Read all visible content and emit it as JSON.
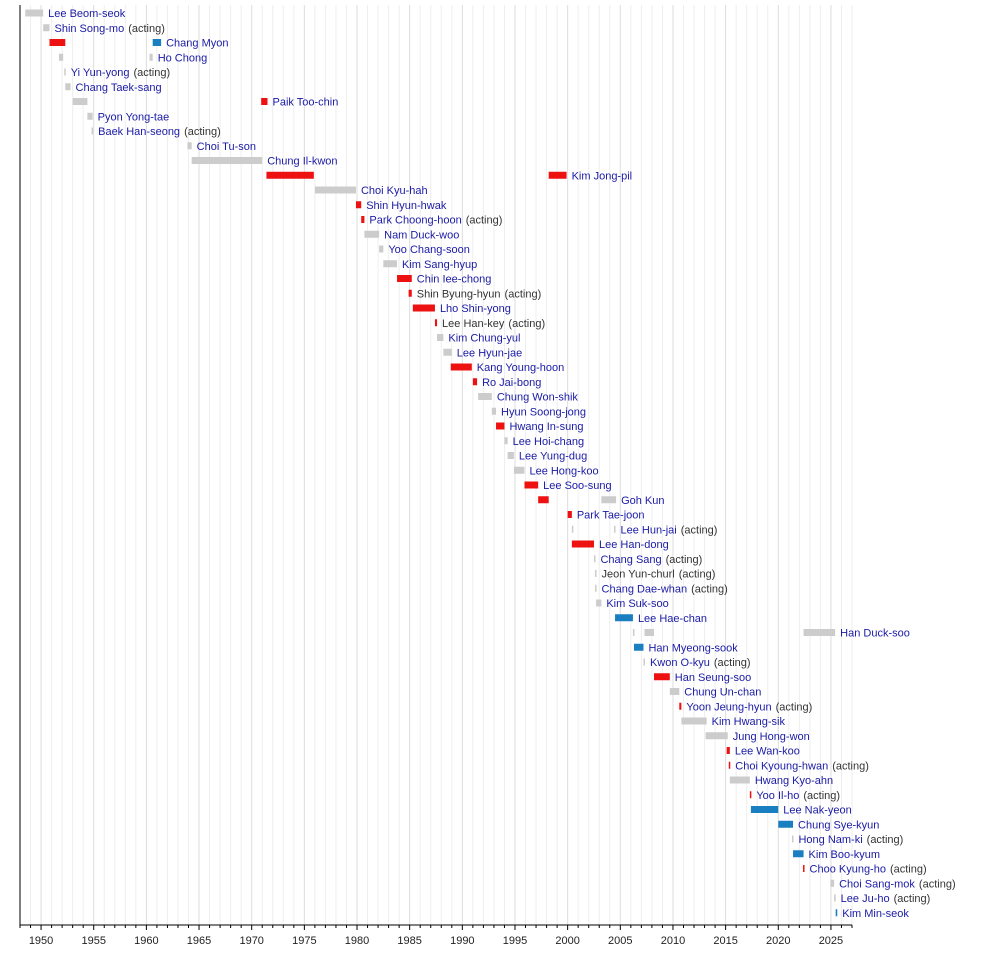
{
  "chart_data": {
    "type": "timeline",
    "title": "",
    "xlabel": "",
    "ylabel": "",
    "xlim": [
      1948,
      2027
    ],
    "x_ticks": [
      1950,
      1955,
      1960,
      1965,
      1970,
      1975,
      1980,
      1985,
      1990,
      1995,
      2000,
      2005,
      2010,
      2015,
      2020,
      2025
    ],
    "x_tick_labels": [
      "1950",
      "1955",
      "1960",
      "1965",
      "1970",
      "1975",
      "1980",
      "1985",
      "1990",
      "1995",
      "2000",
      "2005",
      "2010",
      "2015",
      "2020",
      "2025"
    ],
    "grid": "vertical, yearly",
    "colors": {
      "red": "#ee1111",
      "blue": "#1a7fc1",
      "grey": "#cccccc",
      "link": "#1a1aa6",
      "text": "#333333"
    },
    "acting_note": "(acting)",
    "rows": [
      {
        "name": "Lee Beom-seok",
        "segments": [
          [
            1948.5,
            1950.2,
            "grey"
          ]
        ]
      },
      {
        "name": "Shin Song-mo",
        "acting": true,
        "segments": [
          [
            1950.2,
            1950.8,
            "grey"
          ]
        ]
      },
      {
        "name": "Chang Myon",
        "segments": [
          [
            1950.8,
            1952.3,
            "red"
          ],
          [
            1960.6,
            1961.4,
            "blue"
          ]
        ]
      },
      {
        "name": "Ho Chong",
        "segments": [
          [
            1951.7,
            1952.1,
            "grey"
          ],
          [
            1960.3,
            1960.6,
            "grey"
          ]
        ]
      },
      {
        "name": "Yi Yun-yong",
        "acting": true,
        "segments": [
          [
            1952.2,
            1952.3,
            "grey"
          ]
        ]
      },
      {
        "name": "Chang Taek-sang",
        "segments": [
          [
            1952.3,
            1952.8,
            "grey"
          ]
        ]
      },
      {
        "name": "Paik Too-chin",
        "segments": [
          [
            1953.0,
            1954.4,
            "grey"
          ],
          [
            1970.9,
            1971.5,
            "red"
          ]
        ]
      },
      {
        "name": "Pyon Yong-tae",
        "segments": [
          [
            1954.4,
            1954.9,
            "grey"
          ]
        ]
      },
      {
        "name": "Baek Han-seong",
        "acting": true,
        "segments": [
          [
            1954.8,
            1954.9,
            "grey"
          ]
        ]
      },
      {
        "name": "Choi Tu-son",
        "segments": [
          [
            1963.9,
            1964.3,
            "grey"
          ]
        ]
      },
      {
        "name": "Chung Il-kwon",
        "segments": [
          [
            1964.3,
            1971.0,
            "grey"
          ]
        ]
      },
      {
        "name": "Kim Jong-pil",
        "segments": [
          [
            1971.4,
            1975.9,
            "red"
          ],
          [
            1998.2,
            1999.9,
            "red"
          ]
        ]
      },
      {
        "name": "Choi Kyu-hah",
        "segments": [
          [
            1976.0,
            1979.9,
            "grey"
          ]
        ]
      },
      {
        "name": "Shin Hyun-hwak",
        "segments": [
          [
            1979.9,
            1980.4,
            "red"
          ]
        ]
      },
      {
        "name": "Park Choong-hoon",
        "acting": true,
        "segments": [
          [
            1980.4,
            1980.7,
            "red"
          ]
        ]
      },
      {
        "name": "Nam Duck-woo",
        "segments": [
          [
            1980.7,
            1982.1,
            "grey"
          ]
        ]
      },
      {
        "name": "Yoo Chang-soon",
        "segments": [
          [
            1982.1,
            1982.5,
            "grey"
          ]
        ]
      },
      {
        "name": "Kim Sang-hyup",
        "segments": [
          [
            1982.5,
            1983.8,
            "grey"
          ]
        ]
      },
      {
        "name": "Chin Iee-chong",
        "segments": [
          [
            1983.8,
            1985.2,
            "red"
          ]
        ]
      },
      {
        "name": "Shin Byung-hyun",
        "acting": true,
        "linked": false,
        "segments": [
          [
            1984.9,
            1985.2,
            "red"
          ]
        ]
      },
      {
        "name": "Lho Shin-yong",
        "segments": [
          [
            1985.3,
            1987.4,
            "red"
          ]
        ]
      },
      {
        "name": "Lee Han-key",
        "acting": true,
        "linked": false,
        "segments": [
          [
            1987.4,
            1987.6,
            "red"
          ]
        ]
      },
      {
        "name": "Kim Chung-yul",
        "segments": [
          [
            1987.6,
            1988.2,
            "grey"
          ]
        ]
      },
      {
        "name": "Lee Hyun-jae",
        "segments": [
          [
            1988.2,
            1989.0,
            "grey"
          ]
        ]
      },
      {
        "name": "Kang Young-hoon",
        "segments": [
          [
            1988.9,
            1990.9,
            "red"
          ]
        ]
      },
      {
        "name": "Ro Jai-bong",
        "segments": [
          [
            1991.0,
            1991.4,
            "red"
          ]
        ]
      },
      {
        "name": "Chung Won-shik",
        "segments": [
          [
            1991.5,
            1992.8,
            "grey"
          ]
        ]
      },
      {
        "name": "Hyun Soong-jong",
        "segments": [
          [
            1992.8,
            1993.2,
            "grey"
          ]
        ]
      },
      {
        "name": "Hwang In-sung",
        "segments": [
          [
            1993.2,
            1994.0,
            "red"
          ]
        ]
      },
      {
        "name": "Lee Hoi-chang",
        "segments": [
          [
            1994.0,
            1994.3,
            "grey"
          ]
        ]
      },
      {
        "name": "Lee Yung-dug",
        "segments": [
          [
            1994.3,
            1994.9,
            "grey"
          ]
        ]
      },
      {
        "name": "Lee Hong-koo",
        "segments": [
          [
            1994.9,
            1995.9,
            "grey"
          ]
        ]
      },
      {
        "name": "Lee Soo-sung",
        "segments": [
          [
            1995.9,
            1997.2,
            "red"
          ]
        ]
      },
      {
        "name": "Goh Kun",
        "segments": [
          [
            1997.2,
            1998.2,
            "red"
          ],
          [
            2003.2,
            2004.6,
            "grey"
          ]
        ]
      },
      {
        "name": "Park Tae-joon",
        "segments": [
          [
            2000.0,
            2000.4,
            "red"
          ]
        ]
      },
      {
        "name": "Lee Hun-jai",
        "acting": true,
        "segments": [
          [
            2000.4,
            2000.45,
            "grey"
          ],
          [
            2004.4,
            2004.5,
            "grey"
          ]
        ]
      },
      {
        "name": "Lee Han-dong",
        "segments": [
          [
            2000.4,
            2002.5,
            "red"
          ]
        ]
      },
      {
        "name": "Chang Sang",
        "acting": true,
        "segments": [
          [
            2002.5,
            2002.6,
            "grey"
          ]
        ]
      },
      {
        "name": "Jeon Yun-churl",
        "acting": true,
        "linked": false,
        "segments": [
          [
            2002.6,
            2002.65,
            "grey"
          ]
        ]
      },
      {
        "name": "Chang Dae-whan",
        "acting": true,
        "segments": [
          [
            2002.6,
            2002.7,
            "grey"
          ]
        ]
      },
      {
        "name": "Kim Suk-soo",
        "segments": [
          [
            2002.7,
            2003.2,
            "grey"
          ]
        ]
      },
      {
        "name": "Lee Hae-chan",
        "segments": [
          [
            2004.5,
            2006.2,
            "blue"
          ]
        ]
      },
      {
        "name": "Han Duck-soo",
        "segments": [
          [
            2006.2,
            2006.3,
            "grey"
          ],
          [
            2007.3,
            2008.2,
            "grey"
          ],
          [
            2022.4,
            2025.4,
            "grey"
          ]
        ]
      },
      {
        "name": "Han Myeong-sook",
        "segments": [
          [
            2006.3,
            2007.2,
            "blue"
          ]
        ]
      },
      {
        "name": "Kwon O-kyu",
        "acting": true,
        "segments": [
          [
            2007.2,
            2007.3,
            "grey"
          ]
        ]
      },
      {
        "name": "Han Seung-soo",
        "segments": [
          [
            2008.2,
            2009.7,
            "red"
          ]
        ]
      },
      {
        "name": "Chung Un-chan",
        "segments": [
          [
            2009.7,
            2010.6,
            "grey"
          ]
        ]
      },
      {
        "name": "Yoon Jeung-hyun",
        "acting": true,
        "segments": [
          [
            2010.6,
            2010.8,
            "red"
          ]
        ]
      },
      {
        "name": "Kim Hwang-sik",
        "segments": [
          [
            2010.8,
            2013.2,
            "grey"
          ]
        ]
      },
      {
        "name": "Jung Hong-won",
        "segments": [
          [
            2013.1,
            2015.2,
            "grey"
          ]
        ]
      },
      {
        "name": "Lee Wan-koo",
        "segments": [
          [
            2015.1,
            2015.4,
            "red"
          ]
        ]
      },
      {
        "name": "Choi Kyoung-hwan",
        "acting": true,
        "segments": [
          [
            2015.3,
            2015.4,
            "red"
          ]
        ]
      },
      {
        "name": "Hwang Kyo-ahn",
        "segments": [
          [
            2015.4,
            2017.3,
            "grey"
          ]
        ]
      },
      {
        "name": "Yoo Il-ho",
        "acting": true,
        "segments": [
          [
            2017.3,
            2017.4,
            "red"
          ]
        ]
      },
      {
        "name": "Lee Nak-yeon",
        "segments": [
          [
            2017.4,
            2020.0,
            "blue"
          ]
        ]
      },
      {
        "name": "Chung Sye-kyun",
        "segments": [
          [
            2020.0,
            2021.4,
            "blue"
          ]
        ]
      },
      {
        "name": "Hong Nam-ki",
        "acting": true,
        "segments": [
          [
            2021.3,
            2021.4,
            "grey"
          ]
        ]
      },
      {
        "name": "Kim Boo-kyum",
        "segments": [
          [
            2021.4,
            2022.4,
            "blue"
          ]
        ]
      },
      {
        "name": "Choo Kyung-ho",
        "acting": true,
        "segments": [
          [
            2022.35,
            2022.45,
            "red"
          ]
        ]
      },
      {
        "name": "Choi Sang-mok",
        "acting": true,
        "segments": [
          [
            2024.95,
            2025.3,
            "grey"
          ]
        ]
      },
      {
        "name": "Lee Ju-ho",
        "acting": true,
        "segments": [
          [
            2025.3,
            2025.45,
            "grey"
          ]
        ]
      },
      {
        "name": "Kim Min-seok",
        "segments": [
          [
            2025.45,
            2025.6,
            "blue"
          ]
        ]
      }
    ]
  }
}
